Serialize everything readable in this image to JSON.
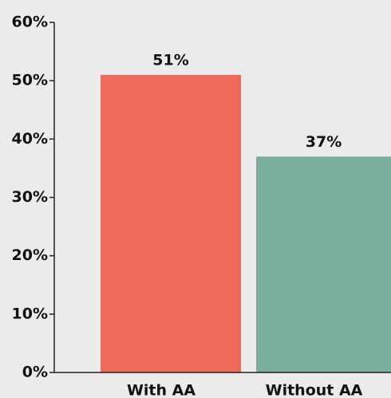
{
  "chart_data": {
    "type": "bar",
    "categories": [
      "With AA",
      "Without AA"
    ],
    "values": [
      51,
      37
    ],
    "value_labels": [
      "51%",
      "37%"
    ],
    "colors": [
      "#ee6a5a",
      "#79ae9a"
    ],
    "ylim": [
      0,
      60
    ],
    "yticks": [
      {
        "value": 0,
        "label": "0%"
      },
      {
        "value": 10,
        "label": "10%"
      },
      {
        "value": 20,
        "label": "20%"
      },
      {
        "value": 30,
        "label": "30%"
      },
      {
        "value": 40,
        "label": "40%"
      },
      {
        "value": 50,
        "label": "50%"
      },
      {
        "value": 60,
        "label": "60%"
      }
    ]
  }
}
